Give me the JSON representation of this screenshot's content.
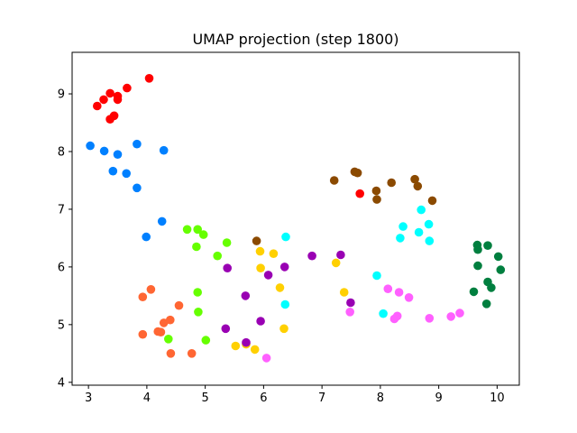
{
  "chart_data": {
    "type": "scatter",
    "title": "UMAP projection (step 1800)",
    "xlabel": "",
    "ylabel": "",
    "xlim": [
      2.72,
      10.38
    ],
    "ylim": [
      3.95,
      9.72
    ],
    "xticks": [
      3,
      4,
      5,
      6,
      7,
      8,
      9,
      10
    ],
    "yticks": [
      4,
      5,
      6,
      7,
      8,
      9
    ],
    "grid": false,
    "legend": "none",
    "series": [
      {
        "color": "#ff0000",
        "points": [
          [
            3.15,
            8.79
          ],
          [
            3.26,
            8.9
          ],
          [
            3.37,
            9.01
          ],
          [
            3.5,
            8.96
          ],
          [
            3.5,
            8.9
          ],
          [
            3.66,
            9.1
          ],
          [
            4.04,
            9.27
          ],
          [
            3.37,
            8.56
          ],
          [
            3.44,
            8.62
          ],
          [
            7.65,
            7.27
          ]
        ]
      },
      {
        "color": "#0080ff",
        "points": [
          [
            3.03,
            8.1
          ],
          [
            3.27,
            8.01
          ],
          [
            3.5,
            7.95
          ],
          [
            3.83,
            8.13
          ],
          [
            4.29,
            8.02
          ],
          [
            3.42,
            7.66
          ],
          [
            3.65,
            7.62
          ],
          [
            3.83,
            7.37
          ],
          [
            4.26,
            6.79
          ],
          [
            3.99,
            6.52
          ]
        ]
      },
      {
        "color": "#8b4a00",
        "points": [
          [
            7.21,
            7.5
          ],
          [
            7.56,
            7.65
          ],
          [
            7.61,
            7.63
          ],
          [
            7.93,
            7.32
          ],
          [
            7.94,
            7.17
          ],
          [
            8.19,
            7.46
          ],
          [
            8.59,
            7.52
          ],
          [
            8.64,
            7.4
          ],
          [
            8.89,
            7.15
          ],
          [
            5.88,
            6.45
          ]
        ]
      },
      {
        "color": "#00ffff",
        "points": [
          [
            8.7,
            6.99
          ],
          [
            8.39,
            6.7
          ],
          [
            8.66,
            6.6
          ],
          [
            8.83,
            6.74
          ],
          [
            8.84,
            6.45
          ],
          [
            8.34,
            6.5
          ],
          [
            6.38,
            6.52
          ],
          [
            7.94,
            5.85
          ],
          [
            6.37,
            5.35
          ],
          [
            8.05,
            5.19
          ]
        ]
      },
      {
        "color": "#007f3f",
        "points": [
          [
            9.66,
            6.38
          ],
          [
            9.67,
            6.3
          ],
          [
            9.84,
            6.37
          ],
          [
            10.02,
            6.18
          ],
          [
            10.06,
            5.95
          ],
          [
            9.67,
            6.02
          ],
          [
            9.84,
            5.74
          ],
          [
            9.9,
            5.64
          ],
          [
            9.6,
            5.57
          ],
          [
            9.82,
            5.36
          ]
        ]
      },
      {
        "color": "#66ff00",
        "points": [
          [
            4.69,
            6.65
          ],
          [
            4.87,
            6.65
          ],
          [
            4.97,
            6.56
          ],
          [
            5.37,
            6.42
          ],
          [
            4.85,
            6.35
          ],
          [
            5.21,
            6.19
          ],
          [
            4.87,
            5.56
          ],
          [
            4.88,
            5.22
          ],
          [
            4.37,
            4.75
          ],
          [
            5.01,
            4.73
          ]
        ]
      },
      {
        "color": "#ffd000",
        "points": [
          [
            5.94,
            6.27
          ],
          [
            6.17,
            6.23
          ],
          [
            5.95,
            5.98
          ],
          [
            6.28,
            5.64
          ],
          [
            7.24,
            6.07
          ],
          [
            7.38,
            5.56
          ],
          [
            6.35,
            4.93
          ],
          [
            5.52,
            4.63
          ],
          [
            5.85,
            4.57
          ],
          [
            5.7,
            4.66
          ]
        ]
      },
      {
        "color": "#9900b3",
        "points": [
          [
            6.83,
            6.19
          ],
          [
            7.32,
            6.21
          ],
          [
            6.36,
            6.0
          ],
          [
            5.38,
            5.98
          ],
          [
            6.08,
            5.86
          ],
          [
            5.69,
            5.5
          ],
          [
            7.49,
            5.38
          ],
          [
            5.95,
            5.06
          ],
          [
            5.35,
            4.93
          ],
          [
            5.7,
            4.69
          ]
        ]
      },
      {
        "color": "#ff60ff",
        "points": [
          [
            7.48,
            5.22
          ],
          [
            8.13,
            5.62
          ],
          [
            8.32,
            5.56
          ],
          [
            8.49,
            5.47
          ],
          [
            8.29,
            5.15
          ],
          [
            8.24,
            5.1
          ],
          [
            8.84,
            5.11
          ],
          [
            9.21,
            5.14
          ],
          [
            9.36,
            5.2
          ],
          [
            6.05,
            4.42
          ]
        ]
      },
      {
        "color": "#ff6633",
        "points": [
          [
            3.93,
            5.48
          ],
          [
            4.07,
            5.61
          ],
          [
            4.55,
            5.33
          ],
          [
            4.29,
            5.03
          ],
          [
            4.4,
            5.08
          ],
          [
            4.19,
            4.88
          ],
          [
            4.24,
            4.87
          ],
          [
            3.93,
            4.83
          ],
          [
            4.41,
            4.5
          ],
          [
            4.77,
            4.5
          ]
        ]
      }
    ]
  }
}
